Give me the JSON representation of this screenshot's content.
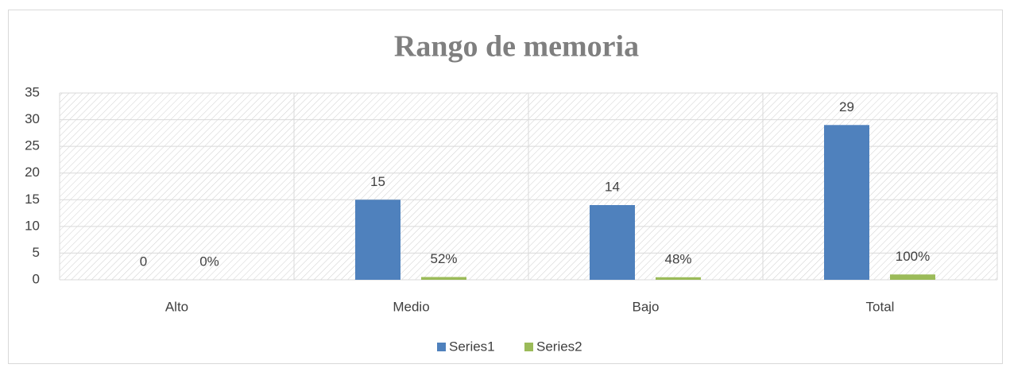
{
  "chart_data": {
    "type": "bar",
    "title": "Rango de memoria",
    "categories": [
      "Alto",
      "Medio",
      "Bajo",
      "Total"
    ],
    "series": [
      {
        "name": "Series1",
        "color": "#4f81bd",
        "values": [
          0,
          15,
          14,
          29
        ]
      },
      {
        "name": "Series2",
        "color": "#9bbb59",
        "values": [
          0,
          0.52,
          0.48,
          1
        ],
        "value_labels": [
          "0%",
          "52%",
          "48%",
          "100%"
        ]
      }
    ],
    "ylim": [
      0,
      35
    ],
    "yticks": [
      0,
      5,
      10,
      15,
      20,
      25,
      30,
      35
    ],
    "grid": true,
    "legend": "bottom"
  }
}
